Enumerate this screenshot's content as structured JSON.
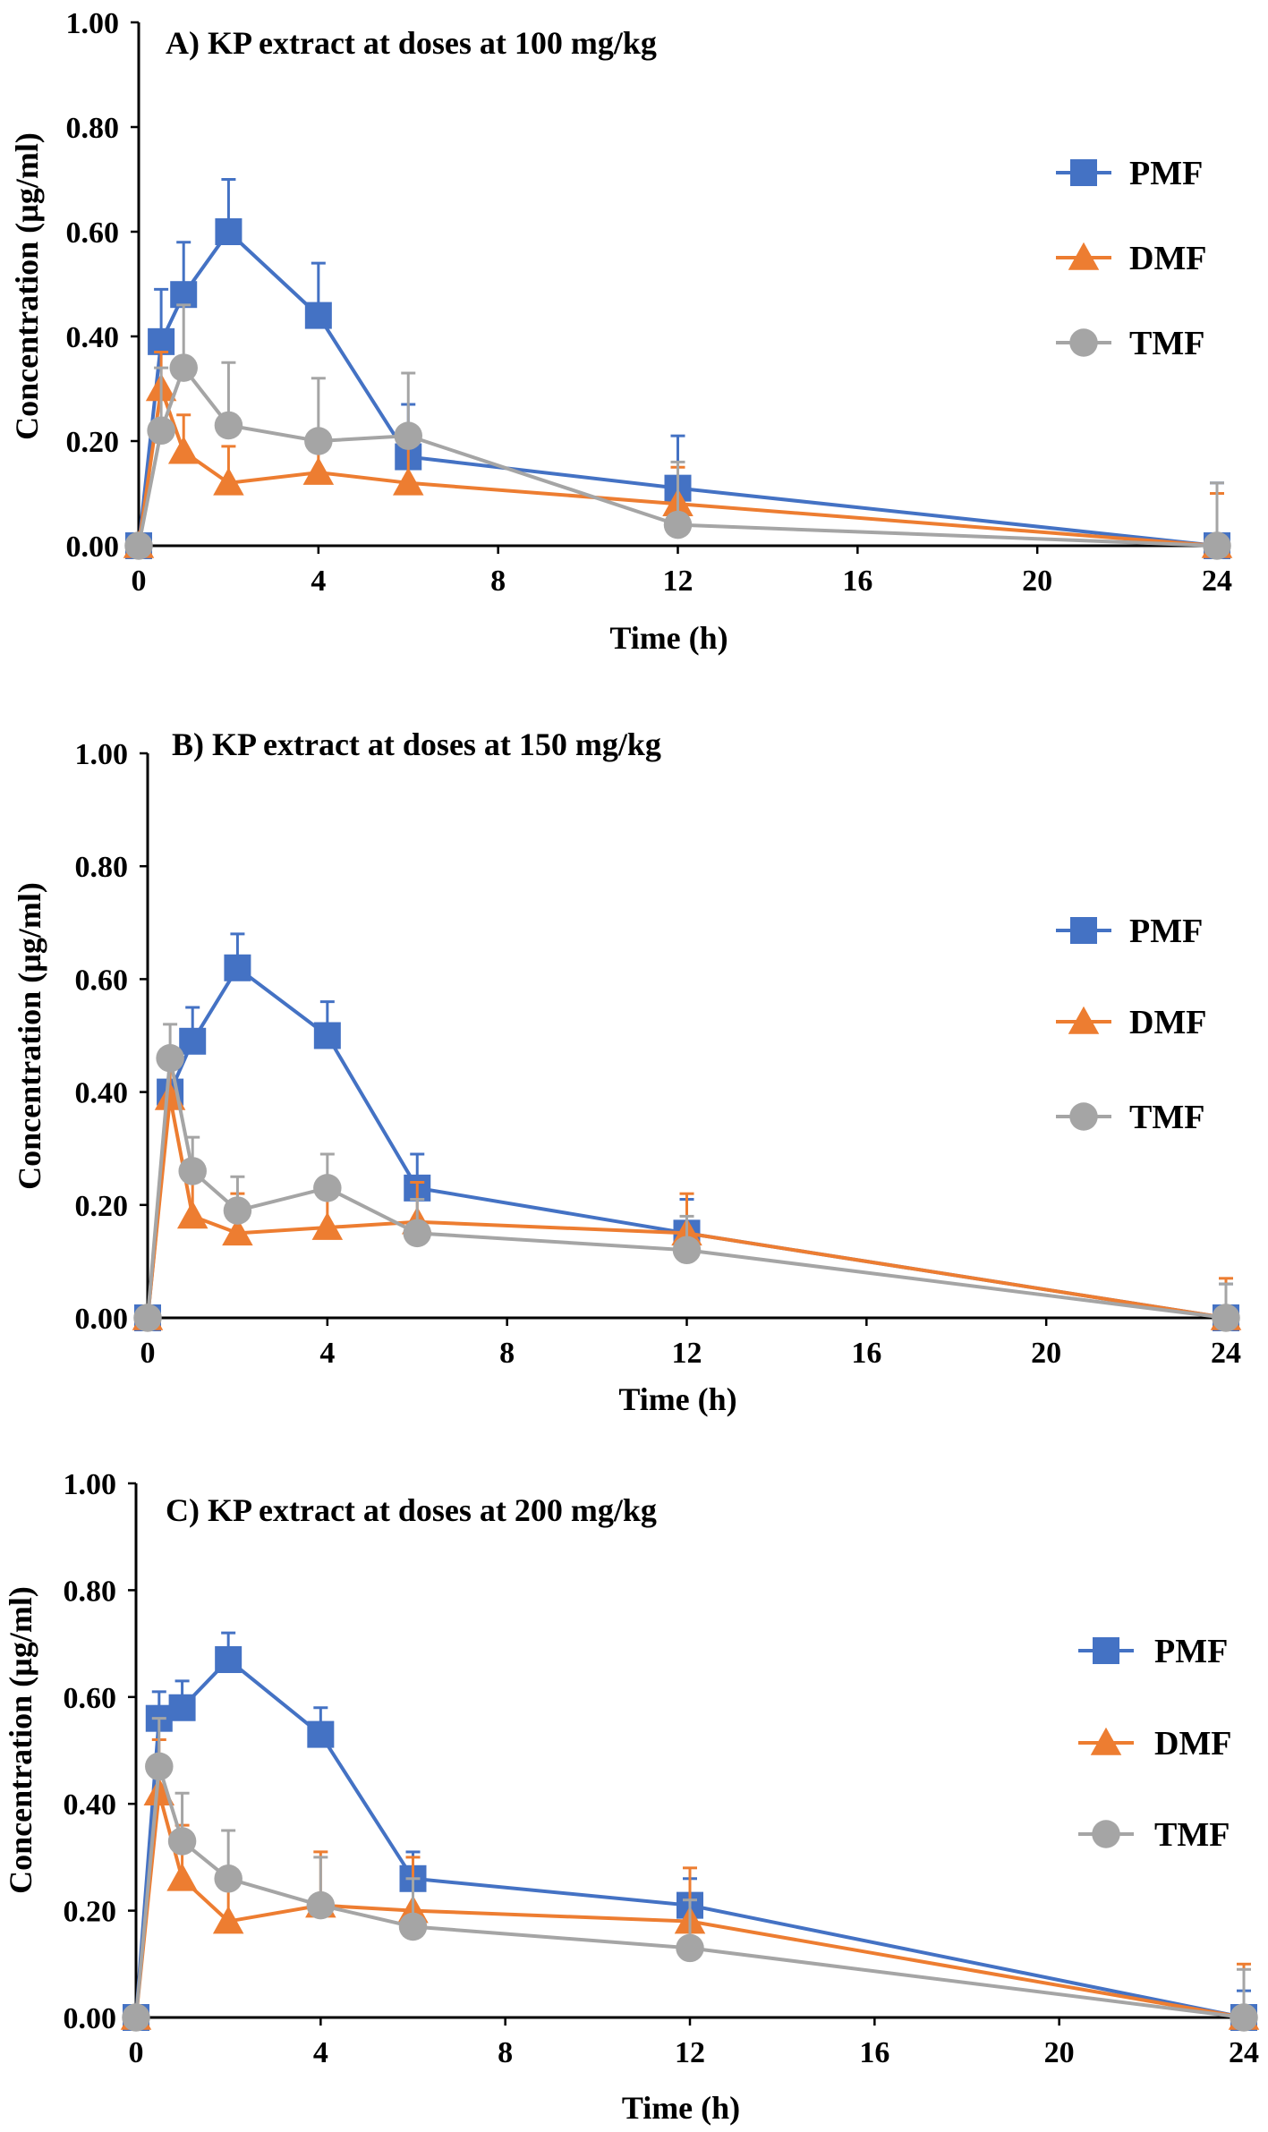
{
  "chart_data": [
    {
      "type": "line",
      "title": "A) KP extract at doses at 100 mg/kg",
      "xlabel": "Time (h)",
      "ylabel": "Concentration (µg/ml)",
      "xlim": [
        0,
        24
      ],
      "ylim": [
        0,
        1
      ],
      "xticks": [
        "0",
        "4",
        "8",
        "12",
        "16",
        "20",
        "24"
      ],
      "yticks": [
        "0.00",
        "0.20",
        "0.40",
        "0.60",
        "0.80",
        "1.00"
      ],
      "grid": false,
      "legend_position": "right",
      "x": [
        0,
        0.5,
        1,
        2,
        4,
        6,
        12,
        24
      ],
      "series": [
        {
          "name": "PMF",
          "color": "#4472C4",
          "marker": "square",
          "values": [
            0,
            0.39,
            0.48,
            0.6,
            0.44,
            0.17,
            0.11,
            0
          ],
          "errors": [
            0,
            0.1,
            0.1,
            0.1,
            0.1,
            0.1,
            0.1,
            0.12
          ]
        },
        {
          "name": "DMF",
          "color": "#ED7D31",
          "marker": "triangle",
          "values": [
            0,
            0.3,
            0.18,
            0.12,
            0.14,
            0.12,
            0.08,
            0
          ],
          "errors": [
            0,
            0.07,
            0.07,
            0.07,
            0.07,
            0.07,
            0.07,
            0.1
          ]
        },
        {
          "name": "TMF",
          "color": "#A5A5A5",
          "marker": "circle",
          "values": [
            0,
            0.22,
            0.34,
            0.23,
            0.2,
            0.21,
            0.04,
            0
          ],
          "errors": [
            0,
            0.12,
            0.12,
            0.12,
            0.12,
            0.12,
            0.12,
            0.12
          ]
        }
      ]
    },
    {
      "type": "line",
      "title": "B) KP extract at doses at 150 mg/kg",
      "xlabel": "Time (h)",
      "ylabel": "Concentration (µg/ml)",
      "xlim": [
        0,
        24
      ],
      "ylim": [
        0,
        1
      ],
      "xticks": [
        "0",
        "4",
        "8",
        "12",
        "16",
        "20",
        "24"
      ],
      "yticks": [
        "0.00",
        "0.20",
        "0.40",
        "0.60",
        "0.80",
        "1.00"
      ],
      "grid": false,
      "legend_position": "right",
      "x": [
        0,
        0.5,
        1,
        2,
        4,
        6,
        12,
        24
      ],
      "series": [
        {
          "name": "PMF",
          "color": "#4472C4",
          "marker": "square",
          "values": [
            0,
            0.4,
            0.49,
            0.62,
            0.5,
            0.23,
            0.15,
            0
          ],
          "errors": [
            0,
            0.06,
            0.06,
            0.06,
            0.06,
            0.06,
            0.06,
            0.06
          ]
        },
        {
          "name": "DMF",
          "color": "#ED7D31",
          "marker": "triangle",
          "values": [
            0,
            0.39,
            0.18,
            0.15,
            0.16,
            0.17,
            0.15,
            0
          ],
          "errors": [
            0,
            0.07,
            0.07,
            0.07,
            0.07,
            0.07,
            0.07,
            0.07
          ]
        },
        {
          "name": "TMF",
          "color": "#A5A5A5",
          "marker": "circle",
          "values": [
            0,
            0.46,
            0.26,
            0.19,
            0.23,
            0.15,
            0.12,
            0
          ],
          "errors": [
            0,
            0.06,
            0.06,
            0.06,
            0.06,
            0.06,
            0.06,
            0.06
          ]
        }
      ]
    },
    {
      "type": "line",
      "title": "C) KP extract at doses at 200 mg/kg",
      "xlabel": "Time (h)",
      "ylabel": "Concentration (µg/ml)",
      "xlim": [
        0,
        24
      ],
      "ylim": [
        0,
        1
      ],
      "xticks": [
        "0",
        "4",
        "8",
        "12",
        "16",
        "20",
        "24"
      ],
      "yticks": [
        "0.00",
        "0.20",
        "0.40",
        "0.60",
        "0.80",
        "1.00"
      ],
      "grid": false,
      "legend_position": "right",
      "x": [
        0,
        0.5,
        1,
        2,
        4,
        6,
        12,
        24
      ],
      "series": [
        {
          "name": "PMF",
          "color": "#4472C4",
          "marker": "square",
          "values": [
            0,
            0.56,
            0.58,
            0.67,
            0.53,
            0.26,
            0.21,
            0
          ],
          "errors": [
            0,
            0.05,
            0.05,
            0.05,
            0.05,
            0.05,
            0.05,
            0.05
          ]
        },
        {
          "name": "DMF",
          "color": "#ED7D31",
          "marker": "triangle",
          "values": [
            0,
            0.42,
            0.26,
            0.18,
            0.21,
            0.2,
            0.18,
            0
          ],
          "errors": [
            0,
            0.1,
            0.1,
            0.1,
            0.1,
            0.1,
            0.1,
            0.1
          ]
        },
        {
          "name": "TMF",
          "color": "#A5A5A5",
          "marker": "circle",
          "values": [
            0,
            0.47,
            0.33,
            0.26,
            0.21,
            0.17,
            0.13,
            0
          ],
          "errors": [
            0,
            0.09,
            0.09,
            0.09,
            0.09,
            0.09,
            0.09,
            0.09
          ]
        }
      ]
    }
  ]
}
